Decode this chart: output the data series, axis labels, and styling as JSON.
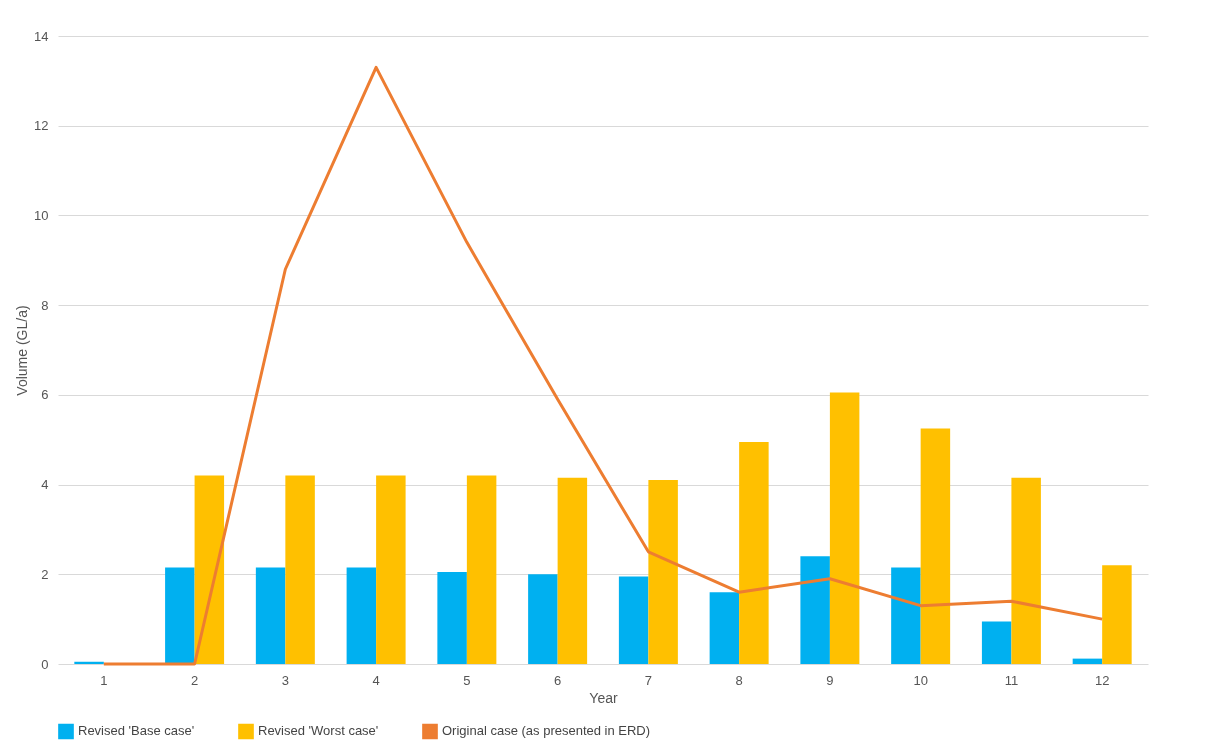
{
  "chart_data": {
    "type": "bar",
    "xlabel": "Year",
    "ylabel": "Volume (GL/a)",
    "categories": [
      "1",
      "2",
      "3",
      "4",
      "5",
      "6",
      "7",
      "8",
      "9",
      "10",
      "11",
      "12"
    ],
    "series": [
      {
        "name": "Revised 'Base case'",
        "color": "#00b0f0",
        "values": [
          0.05,
          2.15,
          2.15,
          2.15,
          2.05,
          2.0,
          1.95,
          1.6,
          2.4,
          2.15,
          0.95,
          0.12
        ]
      },
      {
        "name": "Revised 'Worst case'",
        "color": "#ffc000",
        "values": [
          0,
          4.2,
          4.2,
          4.2,
          4.2,
          4.15,
          4.1,
          4.95,
          6.05,
          5.25,
          4.15,
          2.2
        ]
      },
      {
        "name": "Original case (as presented in ERD)",
        "type": "line",
        "color": "#ed7d31",
        "values": [
          0,
          0,
          8.8,
          13.3,
          9.4,
          5.9,
          2.5,
          1.6,
          1.9,
          1.3,
          1.4,
          1.0
        ]
      }
    ],
    "ylim": [
      0,
      14
    ],
    "yticks": [
      0,
      2,
      4,
      6,
      8,
      10,
      12,
      14
    ],
    "grid": "y",
    "legend": "bottom"
  }
}
